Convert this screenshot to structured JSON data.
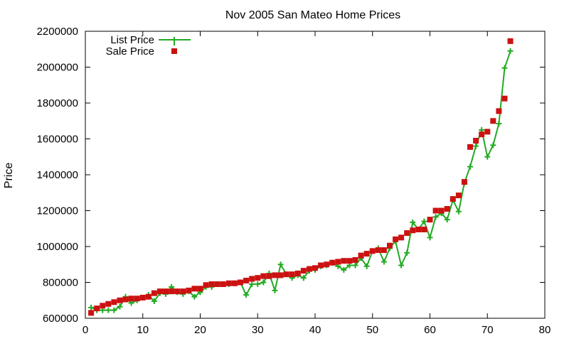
{
  "chart_data": {
    "type": "line",
    "title": "Nov 2005 San Mateo Home Prices",
    "xlabel": "",
    "ylabel": "Price",
    "xlim": [
      0,
      80
    ],
    "ylim": [
      600000,
      2200000
    ],
    "x_ticks": [
      0,
      10,
      20,
      30,
      40,
      50,
      60,
      70,
      80
    ],
    "y_ticks": [
      600000,
      800000,
      1000000,
      1200000,
      1400000,
      1600000,
      1800000,
      2000000,
      2200000
    ],
    "x_tick_labels": [
      "0",
      "10",
      "20",
      "30",
      "40",
      "50",
      "60",
      "70",
      "80"
    ],
    "y_tick_labels": [
      "600000",
      "800000",
      "1000000",
      "1200000",
      "1400000",
      "1600000",
      "1800000",
      "2000000",
      "2200000"
    ],
    "grid": false,
    "legend_position": "top-left",
    "x": [
      1,
      2,
      3,
      4,
      5,
      6,
      7,
      8,
      9,
      10,
      11,
      12,
      13,
      14,
      15,
      16,
      17,
      18,
      19,
      20,
      21,
      22,
      23,
      24,
      25,
      26,
      27,
      28,
      29,
      30,
      31,
      32,
      33,
      34,
      35,
      36,
      37,
      38,
      39,
      40,
      41,
      42,
      43,
      44,
      45,
      46,
      47,
      48,
      49,
      50,
      51,
      52,
      53,
      54,
      55,
      56,
      57,
      58,
      59,
      60,
      61,
      62,
      63,
      64,
      65,
      66,
      67,
      68,
      69,
      70,
      71,
      72,
      73,
      74
    ],
    "series": [
      {
        "name": "List Price",
        "style": "line-plus",
        "color": "#22aa22",
        "values": [
          660000,
          645000,
          645000,
          645000,
          645000,
          665000,
          720000,
          685000,
          700000,
          715000,
          730000,
          695000,
          740000,
          735000,
          775000,
          745000,
          735000,
          750000,
          720000,
          745000,
          775000,
          775000,
          790000,
          790000,
          790000,
          795000,
          800000,
          730000,
          790000,
          790000,
          800000,
          850000,
          755000,
          900000,
          845000,
          825000,
          840000,
          825000,
          865000,
          870000,
          890000,
          895000,
          910000,
          890000,
          870000,
          895000,
          895000,
          935000,
          890000,
          975000,
          990000,
          915000,
          990000,
          1030000,
          895000,
          965000,
          1135000,
          1095000,
          1140000,
          1050000,
          1165000,
          1185000,
          1150000,
          1260000,
          1195000,
          1355000,
          1445000,
          1560000,
          1650000,
          1500000,
          1565000,
          1685000,
          1995000,
          2090000
        ]
      },
      {
        "name": "Sale Price",
        "style": "square",
        "color": "#cc1111",
        "values": [
          630000,
          655000,
          670000,
          680000,
          690000,
          700000,
          705000,
          710000,
          710000,
          715000,
          720000,
          740000,
          750000,
          750000,
          750000,
          750000,
          750000,
          755000,
          765000,
          765000,
          785000,
          790000,
          790000,
          790000,
          795000,
          795000,
          800000,
          810000,
          820000,
          825000,
          835000,
          835000,
          840000,
          840000,
          845000,
          845000,
          850000,
          865000,
          875000,
          880000,
          895000,
          900000,
          910000,
          915000,
          920000,
          920000,
          925000,
          950000,
          960000,
          975000,
          980000,
          980000,
          1005000,
          1040000,
          1050000,
          1075000,
          1090000,
          1095000,
          1095000,
          1150000,
          1200000,
          1200000,
          1210000,
          1265000,
          1285000,
          1360000,
          1555000,
          1590000,
          1625000,
          1640000,
          1700000,
          1755000,
          1825000,
          2145000
        ]
      }
    ]
  }
}
